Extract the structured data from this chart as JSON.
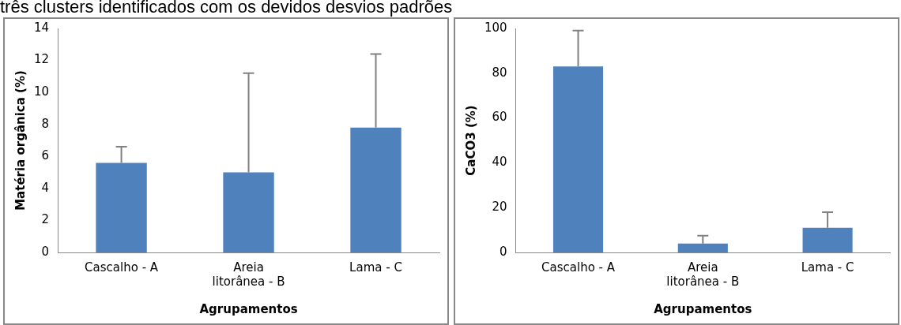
{
  "chart_data": [
    {
      "type": "bar",
      "categories": [
        "Cascalho - A",
        "Areia litorânea - B",
        "Lama - C"
      ],
      "values": [
        5.6,
        5.0,
        7.8
      ],
      "errors": [
        [
          5.6,
          6.6
        ],
        [
          5.0,
          11.2
        ],
        [
          7.8,
          12.4
        ]
      ],
      "color": "#4f81bd",
      "xlabel": "Agrupamentos",
      "ylabel": "Matéria orgânica (%)",
      "ylim": [
        0,
        14
      ],
      "yticks": [
        0,
        2,
        4,
        6,
        8,
        10,
        12,
        14
      ],
      "annotations": [
        "três clusters identificados com os devidos desvios padrões"
      ]
    },
    {
      "type": "bar",
      "categories": [
        "Cascalho - A",
        "Areia litorânea - B",
        "Lama - C"
      ],
      "values": [
        83,
        4,
        11
      ],
      "errors": [
        [
          83,
          99
        ],
        [
          4,
          7.5
        ],
        [
          11,
          18
        ]
      ],
      "color": "#4f81bd",
      "xlabel": "Agrupamentos",
      "ylabel": "CaCO3 (%)",
      "ylim": [
        0,
        100
      ],
      "yticks": [
        0,
        20,
        40,
        60,
        80,
        100
      ]
    }
  ]
}
